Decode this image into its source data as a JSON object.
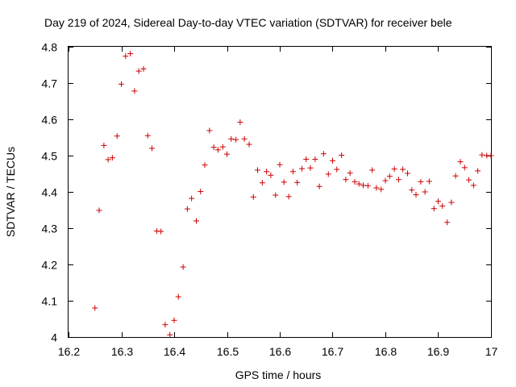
{
  "chart_data": {
    "type": "scatter",
    "title": "Day 219 of 2024, Sidereal Day-to-day VTEC variation (SDTVAR) for receiver bele",
    "xlabel": "GPS time / hours",
    "ylabel": "SDTVAR / TECUs",
    "xlim": [
      16.2,
      17.0
    ],
    "ylim": [
      4.0,
      4.8
    ],
    "xticks": [
      "16.2",
      "16.3",
      "16.4",
      "16.5",
      "16.6",
      "16.7",
      "16.8",
      "16.9",
      "17"
    ],
    "yticks": [
      "4",
      "4.1",
      "4.2",
      "4.3",
      "4.4",
      "4.5",
      "4.6",
      "4.7",
      "4.8"
    ],
    "grid": false,
    "legend": "none",
    "marker": "+",
    "marker_color": "#cc0000",
    "series": [
      {
        "name": "SDTVAR",
        "points": [
          [
            16.25,
            4.08
          ],
          [
            16.258,
            4.349
          ],
          [
            16.267,
            4.528
          ],
          [
            16.275,
            4.489
          ],
          [
            16.283,
            4.494
          ],
          [
            16.292,
            4.554
          ],
          [
            16.3,
            4.697
          ],
          [
            16.308,
            4.774
          ],
          [
            16.317,
            4.781
          ],
          [
            16.325,
            4.678
          ],
          [
            16.333,
            4.733
          ],
          [
            16.342,
            4.739
          ],
          [
            16.35,
            4.555
          ],
          [
            16.358,
            4.52
          ],
          [
            16.367,
            4.292
          ],
          [
            16.375,
            4.291
          ],
          [
            16.383,
            4.034
          ],
          [
            16.392,
            4.006
          ],
          [
            16.4,
            4.046
          ],
          [
            16.408,
            4.111
          ],
          [
            16.417,
            4.193
          ],
          [
            16.425,
            4.353
          ],
          [
            16.433,
            4.382
          ],
          [
            16.442,
            4.32
          ],
          [
            16.45,
            4.401
          ],
          [
            16.458,
            4.474
          ],
          [
            16.467,
            4.569
          ],
          [
            16.475,
            4.523
          ],
          [
            16.483,
            4.516
          ],
          [
            16.492,
            4.524
          ],
          [
            16.5,
            4.504
          ],
          [
            16.508,
            4.546
          ],
          [
            16.517,
            4.544
          ],
          [
            16.525,
            4.592
          ],
          [
            16.533,
            4.546
          ],
          [
            16.542,
            4.531
          ],
          [
            16.55,
            4.386
          ],
          [
            16.558,
            4.46
          ],
          [
            16.567,
            4.425
          ],
          [
            16.575,
            4.456
          ],
          [
            16.583,
            4.446
          ],
          [
            16.592,
            4.391
          ],
          [
            16.6,
            4.475
          ],
          [
            16.608,
            4.427
          ],
          [
            16.617,
            4.387
          ],
          [
            16.625,
            4.456
          ],
          [
            16.633,
            4.426
          ],
          [
            16.642,
            4.464
          ],
          [
            16.65,
            4.49
          ],
          [
            16.658,
            4.466
          ],
          [
            16.667,
            4.49
          ],
          [
            16.675,
            4.415
          ],
          [
            16.683,
            4.505
          ],
          [
            16.692,
            4.449
          ],
          [
            16.7,
            4.486
          ],
          [
            16.708,
            4.462
          ],
          [
            16.717,
            4.501
          ],
          [
            16.725,
            4.434
          ],
          [
            16.733,
            4.452
          ],
          [
            16.742,
            4.428
          ],
          [
            16.75,
            4.422
          ],
          [
            16.758,
            4.418
          ],
          [
            16.767,
            4.417
          ],
          [
            16.775,
            4.46
          ],
          [
            16.783,
            4.411
          ],
          [
            16.792,
            4.407
          ],
          [
            16.8,
            4.431
          ],
          [
            16.808,
            4.443
          ],
          [
            16.817,
            4.463
          ],
          [
            16.825,
            4.434
          ],
          [
            16.833,
            4.462
          ],
          [
            16.842,
            4.451
          ],
          [
            16.85,
            4.405
          ],
          [
            16.858,
            4.392
          ],
          [
            16.867,
            4.428
          ],
          [
            16.875,
            4.4
          ],
          [
            16.883,
            4.429
          ],
          [
            16.892,
            4.354
          ],
          [
            16.9,
            4.374
          ],
          [
            16.908,
            4.361
          ],
          [
            16.917,
            4.316
          ],
          [
            16.925,
            4.371
          ],
          [
            16.933,
            4.444
          ],
          [
            16.942,
            4.483
          ],
          [
            16.95,
            4.467
          ],
          [
            16.958,
            4.433
          ],
          [
            16.967,
            4.418
          ],
          [
            16.975,
            4.458
          ],
          [
            16.983,
            4.502
          ],
          [
            16.992,
            4.5
          ],
          [
            17.0,
            4.5
          ]
        ]
      }
    ]
  }
}
